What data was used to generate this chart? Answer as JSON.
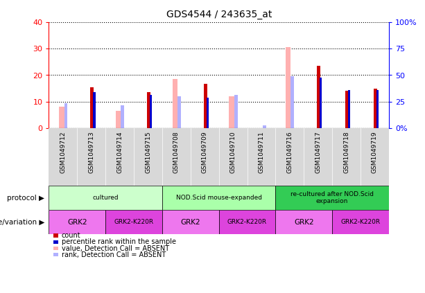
{
  "title": "GDS4544 / 243635_at",
  "samples": [
    "GSM1049712",
    "GSM1049713",
    "GSM1049714",
    "GSM1049715",
    "GSM1049708",
    "GSM1049709",
    "GSM1049710",
    "GSM1049711",
    "GSM1049716",
    "GSM1049717",
    "GSM1049718",
    "GSM1049719"
  ],
  "count_values": [
    0,
    15.5,
    0,
    13.5,
    0,
    16.8,
    0,
    0,
    0,
    23.5,
    14.0,
    15.0
  ],
  "percentile_values": [
    0,
    13.5,
    0,
    12.5,
    0,
    11.5,
    0,
    0,
    0,
    19.0,
    14.5,
    14.5
  ],
  "absent_value_values": [
    8.0,
    0,
    6.5,
    0,
    18.5,
    0,
    12.0,
    0,
    30.5,
    0,
    0,
    0
  ],
  "absent_rank_values": [
    9.5,
    0,
    8.5,
    0,
    12.0,
    0,
    12.5,
    1.0,
    19.5,
    0,
    0,
    0
  ],
  "ylim_left": [
    0,
    40
  ],
  "ylim_right": [
    0,
    100
  ],
  "yticks_left": [
    0,
    10,
    20,
    30,
    40
  ],
  "yticks_right": [
    0,
    25,
    50,
    75,
    100
  ],
  "ytick_labels_left": [
    "0",
    "10",
    "20",
    "30",
    "40"
  ],
  "ytick_labels_right": [
    "0%",
    "25",
    "50",
    "75",
    "100%"
  ],
  "count_color": "#cc0000",
  "percentile_color": "#0000cc",
  "absent_value_color": "#ffb0b0",
  "absent_rank_color": "#b0b0ff",
  "protocol_groups": [
    {
      "label": "cultured",
      "start": 0,
      "end": 3,
      "color": "#ccffcc"
    },
    {
      "label": "NOD.Scid mouse-expanded",
      "start": 4,
      "end": 7,
      "color": "#aaffaa"
    },
    {
      "label": "re-cultured after NOD.Scid\nexpansion",
      "start": 8,
      "end": 11,
      "color": "#33cc55"
    }
  ],
  "genotype_groups": [
    {
      "label": "GRK2",
      "start": 0,
      "end": 1,
      "color": "#ee77ee"
    },
    {
      "label": "GRK2-K220R",
      "start": 2,
      "end": 3,
      "color": "#dd44dd"
    },
    {
      "label": "GRK2",
      "start": 4,
      "end": 5,
      "color": "#ee77ee"
    },
    {
      "label": "GRK2-K220R",
      "start": 6,
      "end": 7,
      "color": "#dd44dd"
    },
    {
      "label": "GRK2",
      "start": 8,
      "end": 9,
      "color": "#ee77ee"
    },
    {
      "label": "GRK2-K220R",
      "start": 10,
      "end": 11,
      "color": "#dd44dd"
    }
  ],
  "protocol_label": "protocol",
  "genotype_label": "genotype/variation",
  "legend_items": [
    {
      "label": "count",
      "color": "#cc0000"
    },
    {
      "label": "percentile rank within the sample",
      "color": "#0000cc"
    },
    {
      "label": "value, Detection Call = ABSENT",
      "color": "#ffb0b0"
    },
    {
      "label": "rank, Detection Call = ABSENT",
      "color": "#b0b0ff"
    }
  ]
}
